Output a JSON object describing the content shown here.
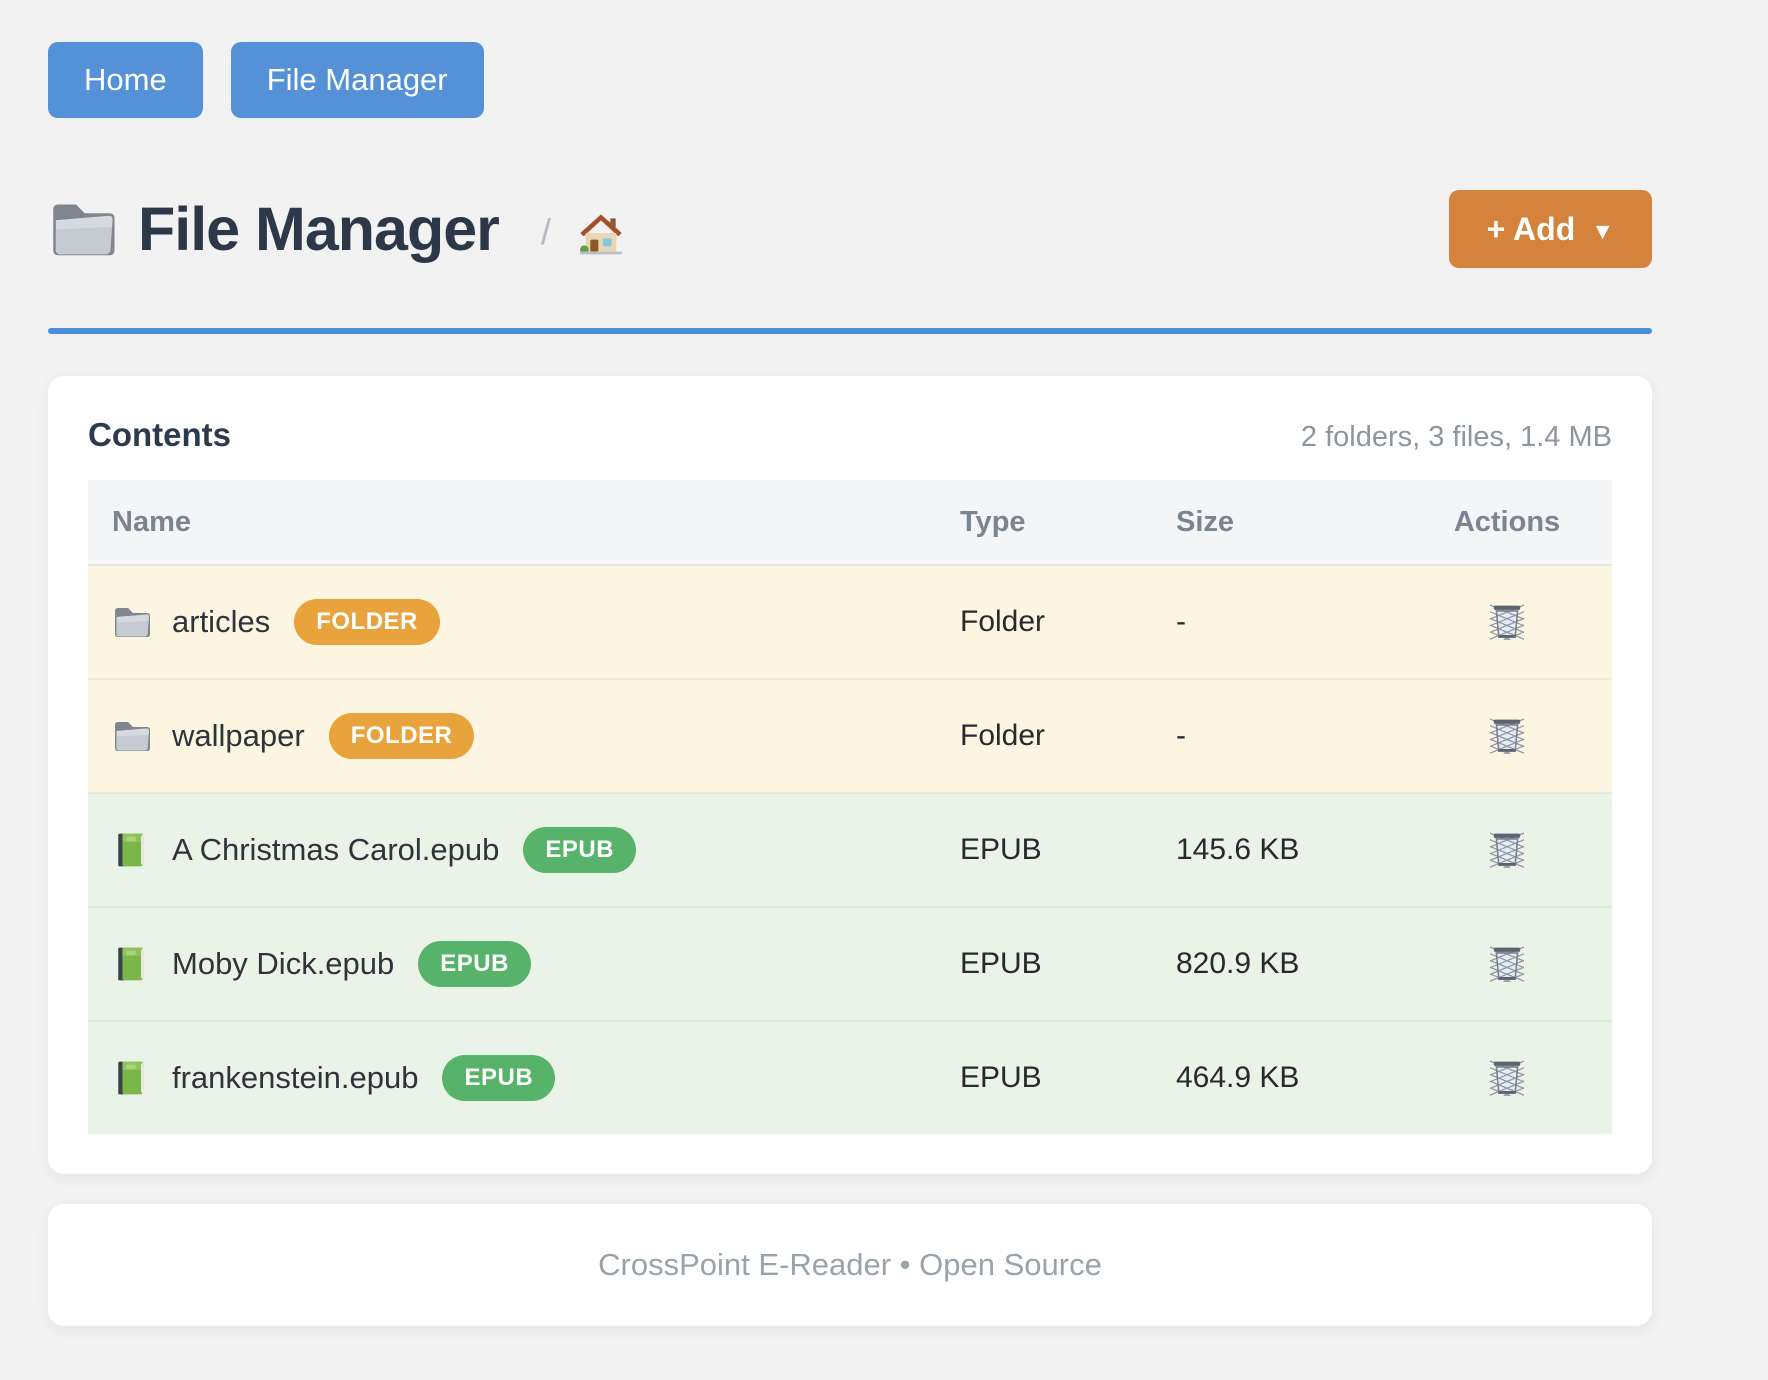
{
  "nav": {
    "home_label": "Home",
    "file_manager_label": "File Manager"
  },
  "header": {
    "title": "File Manager",
    "breadcrumb_separator": "/",
    "add_button": {
      "label": "+ Add",
      "caret": "▼"
    }
  },
  "contents": {
    "heading": "Contents",
    "summary": "2 folders, 3 files, 1.4 MB",
    "table": {
      "columns": [
        "Name",
        "Type",
        "Size",
        "Actions"
      ],
      "rows": [
        {
          "name": "articles",
          "badge": "FOLDER",
          "type": "Folder",
          "size": "-",
          "kind": "folder"
        },
        {
          "name": "wallpaper",
          "badge": "FOLDER",
          "type": "Folder",
          "size": "-",
          "kind": "folder"
        },
        {
          "name": "A Christmas Carol.epub",
          "badge": "EPUB",
          "type": "EPUB",
          "size": "145.6 KB",
          "kind": "epub"
        },
        {
          "name": "Moby Dick.epub",
          "badge": "EPUB",
          "type": "EPUB",
          "size": "820.9 KB",
          "kind": "epub"
        },
        {
          "name": "frankenstein.epub",
          "badge": "EPUB",
          "type": "EPUB",
          "size": "464.9 KB",
          "kind": "epub"
        }
      ]
    }
  },
  "footer": {
    "text": "CrossPoint E-Reader • Open Source"
  },
  "icons": {
    "title": "folder-icon",
    "breadcrumb": "home-icon",
    "folder_rows": "folder-icon",
    "epub_rows": "book-icon",
    "actions": "trash-icon"
  },
  "colors": {
    "nav_button": "#5591d6",
    "accent_rule": "#4a90d8",
    "add_button": "#d5823c",
    "folder_badge": "#e9a33c",
    "epub_badge": "#57b26a",
    "folder_row_bg": "#fcf5e1",
    "epub_row_bg": "#e9f3e7",
    "table_header_bg": "#f4f5f7",
    "page_bg": "#f2f2f3"
  }
}
